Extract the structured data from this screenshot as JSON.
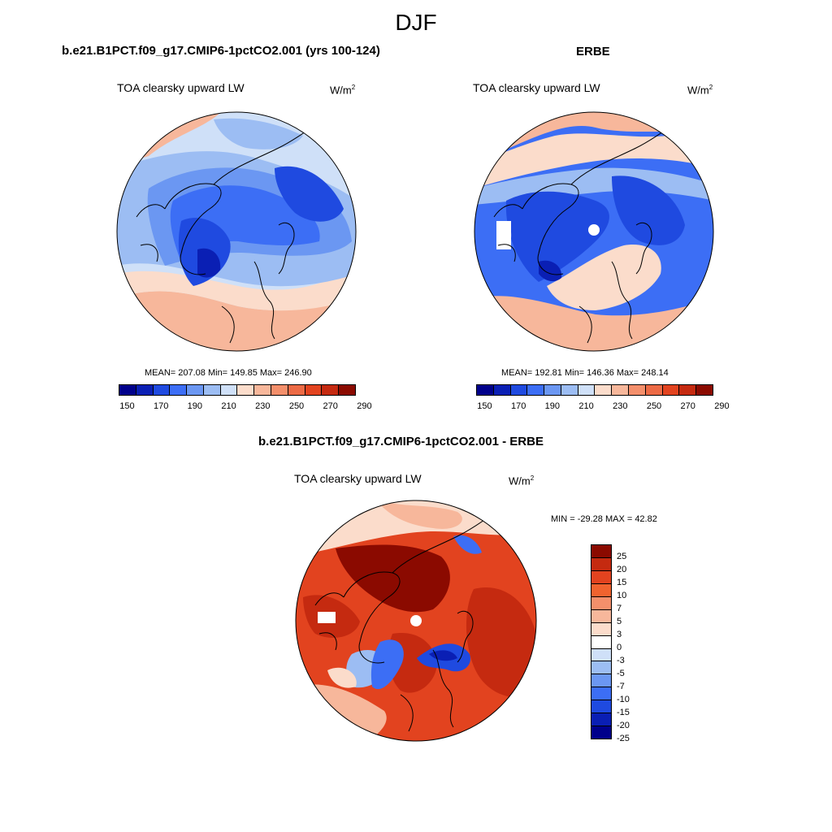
{
  "figure": {
    "title": "DJF",
    "panels": [
      {
        "id": "model",
        "title": "b.e21.B1PCT.f09_g17.CMIP6-1pctCO2.001 (yrs 100-124)",
        "variable": "TOA clearsky upward LW",
        "units_base": "W/m",
        "units_exp": "2",
        "stats": "MEAN= 207.08  Min= 149.85  Max= 246.90",
        "colorbar_labels": [
          "150",
          "170",
          "190",
          "210",
          "230",
          "250",
          "270",
          "290"
        ]
      },
      {
        "id": "obs",
        "title": "ERBE",
        "variable": "TOA clearsky upward LW",
        "units_base": "W/m",
        "units_exp": "2",
        "stats": "MEAN= 192.81  Min= 146.36  Max= 248.14",
        "colorbar_labels": [
          "150",
          "170",
          "190",
          "210",
          "230",
          "250",
          "270",
          "290"
        ]
      },
      {
        "id": "diff",
        "title": "b.e21.B1PCT.f09_g17.CMIP6-1pctCO2.001 - ERBE",
        "variable": "TOA clearsky upward LW",
        "units_base": "W/m",
        "units_exp": "2",
        "stats": "MIN = -29.28 MAX =  42.82",
        "colorbar_labels": [
          "25",
          "20",
          "15",
          "10",
          "7",
          "5",
          "3",
          "0",
          "-3",
          "-5",
          "-7",
          "-10",
          "-15",
          "-20",
          "-25"
        ]
      }
    ]
  },
  "palettes": {
    "abs": [
      "#00008b",
      "#0a1fb4",
      "#1f4ae0",
      "#3c6ef5",
      "#6b97f2",
      "#9cbdf3",
      "#cfe0f8",
      "#fbdccb",
      "#f7b79b",
      "#f38f6b",
      "#ec6a45",
      "#e2431f",
      "#c52a10",
      "#8b0a00"
    ],
    "diff": [
      "#8b0a00",
      "#c52a10",
      "#e2431f",
      "#f0632f",
      "#f38f6b",
      "#f7b79b",
      "#fbdccb",
      "#ffffff",
      "#cfe0f8",
      "#9cbdf3",
      "#6b97f2",
      "#3c6ef5",
      "#1f4ae0",
      "#0a1fb4",
      "#00008b"
    ]
  }
}
